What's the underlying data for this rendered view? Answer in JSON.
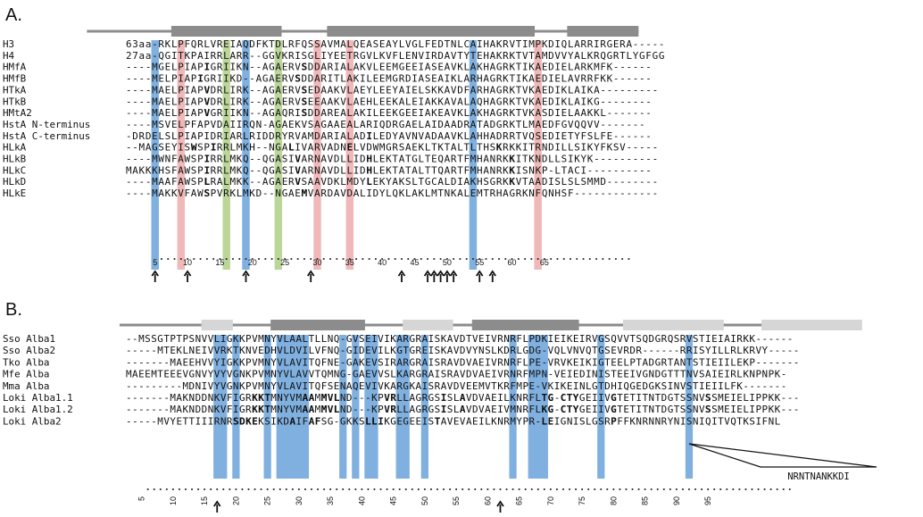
{
  "panels": [
    {
      "label": "A.",
      "highlights": [
        {
          "col": 5,
          "color": "#7fb0e0"
        },
        {
          "col": 9,
          "color": "#f0b8b8"
        },
        {
          "col": 16,
          "color": "#bcd69a"
        },
        {
          "col": 19,
          "color": "#7fb0e0"
        },
        {
          "col": 24,
          "color": "#bcd69a"
        },
        {
          "col": 30,
          "color": "#f0b8b8"
        },
        {
          "col": 35,
          "color": "#f0b8b8"
        },
        {
          "col": 54,
          "color": "#7fb0e0"
        },
        {
          "col": 64,
          "color": "#f0b8b8"
        }
      ],
      "rows": [
        {
          "name": "H3",
          "seq": "63aa-RKLPFQRLVREIAQDFKTDLRFQSSAVMALQEASEAYLVGLFEDTNLCAIHAKRVTIMPKDIQLARRIRGERA-----",
          "bold": []
        },
        {
          "name": "H4",
          "seq": "27aa-QGITKPAIRRLARR--GGVKRISGLIYEETRGVLKVFLENVIRDAVTYTEHAKRKTVTAMDVVYALKRQGRTLYGFGG",
          "bold": []
        },
        {
          "name": "HMfA",
          "seq": "----MGELPIAPIGRIIKN--AGAERVSDDARIALAKVLEEMGEEIASEAVKLAKHAGRKTIKAEDIELARKMFK------",
          "bold": [
            12,
            27
          ]
        },
        {
          "name": "HMfB",
          "seq": "----MELPIAPIGRIIKD--AGAERVSDDARITLAKILEEMGRDIASEAIKLARHAGRKTIKAEDIELAVRRFKK------",
          "bold": [
            11,
            26
          ]
        },
        {
          "name": "HTkA",
          "seq": "----MAELPIAPVDRLIRK--AGAERVSEDAAKVLAEYLEEYAIELSKKAVDFARHAGRKTVKAEDIKLAIKA---------",
          "bold": [
            12,
            27
          ]
        },
        {
          "name": "HTkB",
          "seq": "----MAELPIAPVDRLIRK--AGAERVSEEAAKVLAEHLEEKALEIAKKAVALAQHAGRKTVKAEDIKLAIKG--------",
          "bold": [
            12,
            27
          ]
        },
        {
          "name": "HMtA2",
          "seq": "----MAELPIAPVGRIIKN--AGAQRISDDAREALAKILEEKGEEIAKEAVKLAKHAGRKTVKASDIELAAKKL-------",
          "bold": [
            12,
            27
          ]
        },
        {
          "name": "HstA N-terminus",
          "seq": "----MSVELPFAPVDAIIRQN-AGAEKVSAGAAEALARIQDRGAELAIDAADRATADGRKTLMAEDFGVQQVV-------",
          "bold": []
        },
        {
          "name": "HstA C-terminus",
          "seq": "-DRDELSLPIAPIDRIARLRIDDRYRVAMDARIALADILEDYAVNVADAAVKLAHHADRRTVQSEDIETYFSLFE------",
          "bold": [
            37
          ]
        },
        {
          "name": "HLkA",
          "seq": "--MAGSEYISWSPIRRLMKH--NGALIVARVADNELVDWMGRSAEKLTKTALTLTHSKRKKITRNDILLSIKYFKSV-----",
          "bold": [
            10,
            13,
            25,
            34,
            57
          ]
        },
        {
          "name": "HLkB",
          "seq": "----MWNFAWSPIRRLMKQ--QGASIVARNAVDLLIDHLEKTATGLTEQARTFMHANRKKITKNDLLSIKYK----------",
          "bold": [
            12,
            26,
            37,
            59
          ]
        },
        {
          "name": "HLkC",
          "seq": "MAKKKHSFAWSPIRRLMKQ--QGASIVARNAVDLLIDHLEKTATALTTQARTFMHANRKKISNKP-LTACI----------",
          "bold": [
            12,
            26,
            37,
            59
          ]
        },
        {
          "name": "HLkD",
          "seq": "----MAAFAWSPLRALMKK--AGAERVSAAVDKLMDYLEKYAKSLTGCALDIAKHSGRKKVTAADISLSLSMMD--------",
          "bold": [
            12,
            26,
            37,
            59
          ]
        },
        {
          "name": "HLkE",
          "seq": "----MAKKVFAWSPVRKLMKD--NGAEMVARDAVDALIDYLQKLAKLMTNKALEMTRHAGRKNFQNHSF-------------",
          "bold": [
            12,
            27
          ]
        }
      ],
      "ticks": [
        "5",
        "10",
        "15",
        "20",
        "25",
        "30",
        "35",
        "40",
        "45",
        "50",
        "55",
        "60",
        "65"
      ],
      "arrow_cols": [
        5,
        10,
        19,
        29,
        43,
        47,
        48,
        49,
        50,
        51,
        55,
        57
      ]
    },
    {
      "label": "B.",
      "highlights": [
        {
          "col": 15,
          "color": "#7fb0e0"
        },
        {
          "col": 16,
          "color": "#7fb0e0"
        },
        {
          "col": 18,
          "color": "#7fb0e0"
        },
        {
          "col": 23,
          "color": "#7fb0e0"
        },
        {
          "col": 25,
          "color": "#7fb0e0"
        },
        {
          "col": 26,
          "color": "#7fb0e0"
        },
        {
          "col": 27,
          "color": "#7fb0e0"
        },
        {
          "col": 28,
          "color": "#7fb0e0"
        },
        {
          "col": 29,
          "color": "#7fb0e0"
        },
        {
          "col": 35,
          "color": "#7fb0e0"
        },
        {
          "col": 37,
          "color": "#7fb0e0"
        },
        {
          "col": 39,
          "color": "#7fb0e0"
        },
        {
          "col": 40,
          "color": "#7fb0e0"
        },
        {
          "col": 44,
          "color": "#7fb0e0"
        },
        {
          "col": 45,
          "color": "#7fb0e0"
        },
        {
          "col": 48,
          "color": "#7fb0e0"
        },
        {
          "col": 62,
          "color": "#7fb0e0"
        },
        {
          "col": 65,
          "color": "#7fb0e0"
        },
        {
          "col": 66,
          "color": "#7fb0e0"
        },
        {
          "col": 67,
          "color": "#7fb0e0"
        },
        {
          "col": 76,
          "color": "#7fb0e0"
        },
        {
          "col": 90,
          "color": "#7fb0e0"
        }
      ],
      "rows": [
        {
          "name": "Sso Alba1",
          "seq": "--MSSGTPTPSNVVLIGKKPVMNYVLAALTLLNQ-GVSEIVIKARGRAISKAVDTVEIVRNRFLPDKIEIKEIRVGSQVVTSQDGRQSRVSTIEIAIRKK------",
          "bold": []
        },
        {
          "name": "Sso Alba2",
          "seq": "-----MTEKLNEIVVRKTKNVEDHVLDVILVFNQ-GIDEVILKGTGREISKAVDVYNSLKDRLGDG-VQLVNVQTGSEVRDR------RRISYILLRLKRVY-----",
          "bold": []
        },
        {
          "name": "Tko Alba",
          "seq": "-------MAEEHVVYIGKKPVMNYVLAVITQFNE-GAKEVSIRARGRAISRAVDVAEIVRNRFLPE-VRVKEIKIGTEELPTADGRTANTSTIEIILEKP-------",
          "bold": []
        },
        {
          "name": "Mfe Alba",
          "seq": "MAEEMTEEEVGNVYVYVGNKPVMNYVLAVVTQMNG-GAEVVSLKARGRAISRAVDVAEIVRNRFMPN-VEIEDINISTEEIVGNDGTTTNVSAIEIRLKNPNPK-",
          "bold": []
        },
        {
          "name": "Mma Alba",
          "seq": "---------MDNIVYVGNKPVMNYVLAVITQFSENAQEVIVKARGKAISRAVDVEEMVTKRFMPE-VKIKEINLGTDHIQGEDGKSINVSTIEIILFK-------",
          "bold": []
        },
        {
          "name": "Loki Alba1.1",
          "seq": "-------MAKNDDNKVFIGRKKTMNYVMAAMMVLND---KPVRLLAGRGSISLAVDVAEILKNRFLTG-CTYGEIIVGTETITNTDGTSSNVSSMEIELIPPKK---",
          "bold": [
            20,
            21,
            22,
            28,
            29,
            31,
            32,
            33,
            41,
            42,
            50,
            53,
            66,
            67,
            69,
            70,
            71,
            77,
            92
          ]
        },
        {
          "name": "Loki Alba1.2",
          "seq": "-------MAKNDDNKVFIGRKKTMNYVMAAMMVLND---KPVRLLAGRGSISLAVDVAEIVMNRFLKG-CTYGEIIVGTETITNTDGTSSNVSSMEIELIPPKK---",
          "bold": [
            20,
            21,
            22,
            28,
            29,
            31,
            32,
            33,
            41,
            42,
            50,
            53,
            66,
            67,
            69,
            70,
            71,
            77,
            92
          ]
        },
        {
          "name": "Loki Alba2",
          "seq": "-----MVYETTIIIRNRSDKEKSIKDAIFAFSG-GKKSLLIKGEGEEISTAVEVAEILKNRMYPR-LEIGNISLGSRPFFKNRNNRYNISNIQITVQTKSIFNL",
          "bold": [
            17,
            18,
            19,
            20,
            26,
            29,
            30,
            38,
            39,
            40,
            49,
            66,
            67,
            77
          ]
        }
      ],
      "ticks": [
        "5",
        "10",
        "15",
        "20",
        "25",
        "30",
        "35",
        "40",
        "45",
        "50",
        "55",
        "60",
        "65",
        "70",
        "75",
        "80",
        "85",
        "90",
        "95"
      ],
      "arrow_cols": [
        15,
        60
      ],
      "insertion_label": "NRNTNANKKDI"
    }
  ]
}
